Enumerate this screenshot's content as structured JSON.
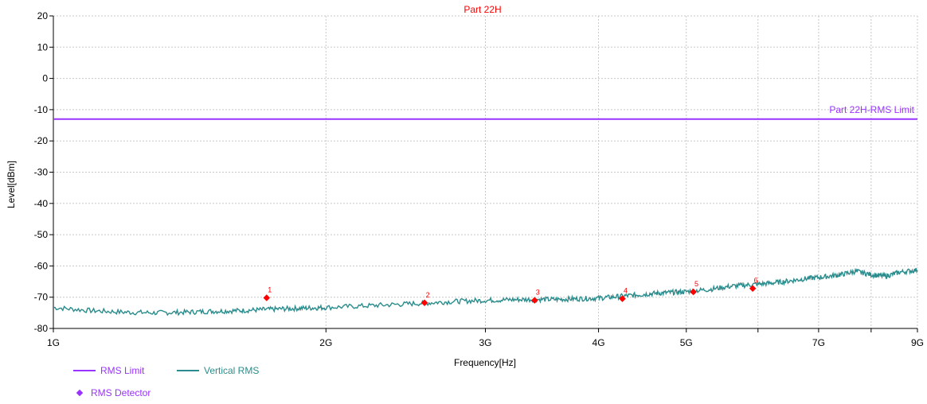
{
  "colors": {
    "limit": "#9933ff",
    "trace": "#2a8c8c",
    "detector": "#ff0000",
    "title": "#ff0000",
    "grid": "#c8c8c8",
    "axis": "#000000"
  },
  "legend": {
    "limit_label": "RMS Limit",
    "trace_label": "Vertical RMS",
    "detector_label": "RMS Detector"
  },
  "chart_data": {
    "type": "line",
    "title": "Part 22H",
    "xlabel": "Frequency[Hz]",
    "ylabel": "Level[dBm]",
    "x_scale": "log",
    "xlim": [
      1000000000,
      9000000000
    ],
    "ylim": [
      -80,
      20
    ],
    "x_ticks": [
      {
        "value": 1000000000,
        "label": "1G"
      },
      {
        "value": 2000000000,
        "label": "2G"
      },
      {
        "value": 3000000000,
        "label": "3G"
      },
      {
        "value": 4000000000,
        "label": "4G"
      },
      {
        "value": 5000000000,
        "label": "5G"
      },
      {
        "value": 6000000000,
        "label": ""
      },
      {
        "value": 7000000000,
        "label": "7G"
      },
      {
        "value": 8000000000,
        "label": ""
      },
      {
        "value": 9000000000,
        "label": "9G"
      }
    ],
    "y_ticks": [
      20,
      10,
      0,
      -10,
      -20,
      -30,
      -40,
      -50,
      -60,
      -70,
      -80
    ],
    "grid": true,
    "legend_position": "bottom-left",
    "limit": {
      "name": "Part 22H-RMS Limit",
      "value": -13
    },
    "series": [
      {
        "name": "Vertical RMS",
        "x": [
          1000000000,
          1100000000,
          1200000000,
          1300000000,
          1400000000,
          1500000000,
          1600000000,
          1700000000,
          1800000000,
          1900000000,
          2000000000,
          2200000000,
          2400000000,
          2600000000,
          2800000000,
          3000000000,
          3200000000,
          3400000000,
          3600000000,
          3800000000,
          4000000000,
          4200000000,
          4400000000,
          4600000000,
          4800000000,
          5000000000,
          5300000000,
          5600000000,
          5900000000,
          6200000000,
          6500000000,
          6800000000,
          7100000000,
          7400000000,
          7700000000,
          8000000000,
          8300000000,
          8600000000,
          9000000000
        ],
        "values": [
          -73.3,
          -74.3,
          -74.8,
          -75.0,
          -74.8,
          -74.5,
          -74.3,
          -74.0,
          -73.7,
          -73.5,
          -73.3,
          -72.8,
          -72.3,
          -71.8,
          -71.3,
          -71.0,
          -70.8,
          -70.7,
          -70.7,
          -70.5,
          -70.3,
          -69.8,
          -69.3,
          -68.8,
          -68.5,
          -68.2,
          -67.5,
          -66.5,
          -66.0,
          -65.5,
          -64.8,
          -64.0,
          -63.5,
          -62.8,
          -61.7,
          -62.8,
          -63.3,
          -62.0,
          -61.3
        ]
      }
    ],
    "markers": {
      "name": "RMS Detector",
      "points": [
        {
          "label": "1",
          "x": 1720000000,
          "y": -70.2
        },
        {
          "label": "2",
          "x": 2570000000,
          "y": -71.8
        },
        {
          "label": "3",
          "x": 3400000000,
          "y": -71.0
        },
        {
          "label": "4",
          "x": 4250000000,
          "y": -70.5
        },
        {
          "label": "5",
          "x": 5090000000,
          "y": -68.3
        },
        {
          "label": "6",
          "x": 5920000000,
          "y": -67.2
        }
      ]
    }
  }
}
